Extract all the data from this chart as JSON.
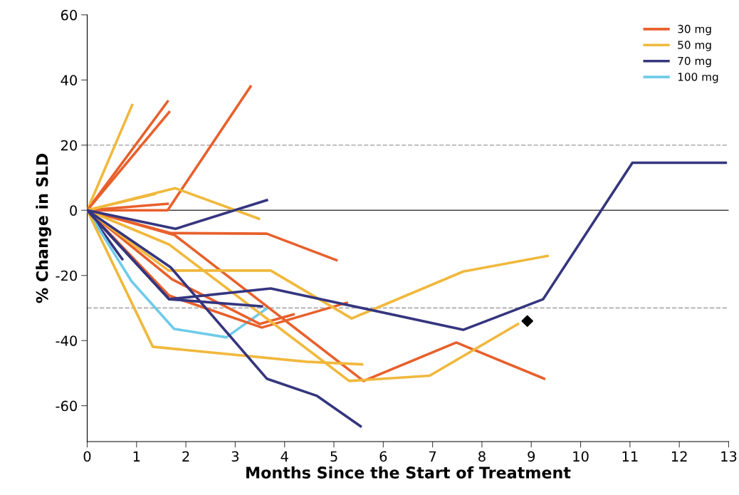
{
  "chart_data": {
    "type": "line",
    "xlabel": "Months Since the Start of Treatment",
    "ylabel": "% Change in SLD",
    "xlim": [
      0,
      13
    ],
    "xticks": [
      0,
      1,
      2,
      3,
      4,
      5,
      6,
      7,
      8,
      9,
      10,
      11,
      12,
      13
    ],
    "ylim": [
      -71,
      60
    ],
    "yticks": [
      -60,
      -40,
      -20,
      0,
      20,
      40,
      60
    ],
    "grid": false,
    "legend": "top right",
    "marker": "none",
    "line_style": "solid",
    "ref_lines": [
      {
        "axis": "y",
        "value": 20,
        "color": "#aaaaaa",
        "line_style": "dashed"
      },
      {
        "axis": "y",
        "value": -30,
        "color": "#aaaaaa",
        "line_style": "dashed"
      },
      {
        "axis": "y",
        "value": 0,
        "color": "#444444",
        "line_style": "solid"
      }
    ],
    "series": [
      {
        "name": "30 mg",
        "color": "#e8602c",
        "x": [
          0,
          1.63
        ],
        "values": [
          0,
          33.4
        ]
      },
      {
        "name": "50 mg",
        "color": "#f0b83c",
        "x": [
          0,
          0.91
        ],
        "values": [
          0,
          32.3
        ]
      },
      {
        "name": "70 mg",
        "color": "#35357f",
        "x": [
          0,
          0.71
        ],
        "values": [
          0,
          -15
        ]
      },
      {
        "name": "100 mg",
        "color": "#6fcbe8",
        "x": [
          0,
          0.9,
          1.76,
          2.82,
          3.66
        ],
        "values": [
          0,
          -21.8,
          -36.4,
          -39,
          -29.9
        ]
      },
      {
        "color": "#e8602c",
        "x": [
          0,
          1.66
        ],
        "values": [
          0,
          30.1
        ]
      },
      {
        "color": "#e8602c",
        "x": [
          0,
          1.63,
          3.31
        ],
        "values": [
          0,
          0,
          38
        ]
      },
      {
        "color": "#e8602c",
        "x": [
          0,
          1.63
        ],
        "values": [
          0,
          2
        ]
      },
      {
        "color": "#e8602c",
        "x": [
          0,
          1.69,
          3.64,
          5.05
        ],
        "values": [
          0,
          -7,
          -7.2,
          -15.3
        ]
      },
      {
        "color": "#e8602c",
        "x": [
          0,
          1.77,
          5.6,
          7.48,
          9.26
        ],
        "values": [
          0,
          -7.6,
          -52.4,
          -40.6,
          -51.7
        ]
      },
      {
        "color": "#e8602c",
        "x": [
          0,
          1.66,
          3.54,
          5.26
        ],
        "values": [
          0,
          -26.2,
          -36,
          -28.4
        ]
      },
      {
        "color": "#e8602c",
        "x": [
          0,
          1.72,
          3.5,
          4.18
        ],
        "values": [
          0,
          -21.2,
          -34.9,
          -32
        ]
      },
      {
        "color": "#f0b83c",
        "x": [
          0,
          1.37
        ],
        "values": [
          0,
          5
        ]
      },
      {
        "color": "#f0b83c",
        "x": [
          0,
          1.78,
          3.48
        ],
        "values": [
          0,
          6.8,
          -2.6
        ]
      },
      {
        "color": "#f0b83c",
        "x": [
          0,
          1.65,
          3.72,
          5.36,
          7.62,
          9.33
        ],
        "values": [
          0,
          -18.5,
          -18.5,
          -33.2,
          -18.8,
          -14
        ]
      },
      {
        "color": "#f0b83c",
        "x": [
          0,
          1.66,
          5.31,
          6.94,
          8.73
        ],
        "values": [
          0,
          -10.5,
          -52.4,
          -50.8,
          -34.9
        ]
      },
      {
        "color": "#f0b83c",
        "x": [
          0,
          1.33,
          4.44,
          5.57
        ],
        "values": [
          0,
          -41.9,
          -46.5,
          -47.3
        ]
      },
      {
        "color": "#35357f",
        "x": [
          0,
          1.79,
          3.64
        ],
        "values": [
          0,
          -5.7,
          3.1
        ]
      },
      {
        "color": "#35357f",
        "x": [
          0,
          1.66,
          3.72,
          7.62,
          9.24,
          11.05,
          12.94
        ],
        "values": [
          0,
          -27.3,
          -24,
          -36.7,
          -27.3,
          14.6,
          14.6
        ]
      },
      {
        "color": "#35357f",
        "x": [
          0,
          1.66,
          3.54
        ],
        "values": [
          0,
          -27.3,
          -29.5
        ]
      },
      {
        "color": "#35357f",
        "x": [
          0,
          1.69,
          3.64,
          4.66,
          5.54
        ],
        "values": [
          0,
          -17.5,
          -51.7,
          -57,
          -66.3
        ]
      },
      {
        "type": "scatter",
        "color": "#000000",
        "marker": "diamond",
        "x": [
          8.92
        ],
        "values": [
          -34
        ]
      }
    ]
  }
}
